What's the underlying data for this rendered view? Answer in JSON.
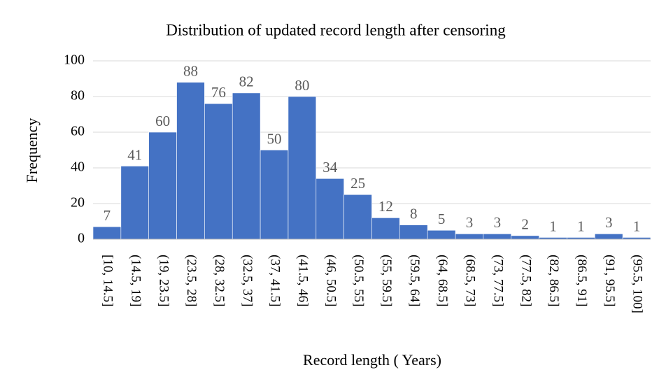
{
  "chart_data": {
    "type": "bar",
    "title": "Distribution of updated record length after censoring",
    "x_label": "Record length ( Years)",
    "y_label": "Frequency",
    "categories": [
      "[10, 14.5]",
      "(14.5, 19]",
      "(19, 23.5]",
      "(23.5, 28]",
      "(28, 32.5]",
      "(32.5, 37]",
      "(37, 41.5]",
      "(41.5, 46]",
      "(46, 50.5]",
      "(50.5, 55]",
      "(55, 59.5]",
      "(59.5, 64]",
      "(64, 68.5]",
      "(68.5, 73]",
      "(73, 77.5]",
      "(77.5, 82]",
      "(82, 86.5]",
      "(86.5, 91]",
      "(91, 95.5]",
      "(95.5, 100]"
    ],
    "values": [
      7,
      41,
      60,
      88,
      76,
      82,
      50,
      80,
      34,
      25,
      12,
      8,
      5,
      3,
      3,
      2,
      1,
      1,
      3,
      1
    ],
    "color": "#4472c4",
    "ylim": [
      0,
      100
    ],
    "yticks": [
      0,
      20,
      40,
      60,
      80,
      100
    ],
    "grid": true
  }
}
